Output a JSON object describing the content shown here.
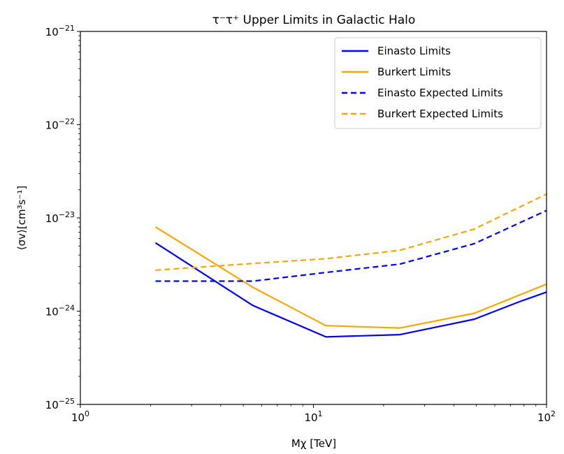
{
  "chart_data": {
    "type": "line",
    "title": "τ⁻τ⁺ Upper Limits in Galactic Halo",
    "xlabel": "Mχ [TeV]",
    "ylabel": "⟨σv⟩[cm³s⁻¹]",
    "xscale": "log",
    "yscale": "log",
    "xlim": [
      1,
      100
    ],
    "ylim": [
      1e-25,
      1e-21
    ],
    "grid": false,
    "legend_position": "top-right",
    "x_tick_labels": [
      {
        "value": 1,
        "base": "10",
        "exp": "0"
      },
      {
        "value": 10,
        "base": "10",
        "exp": "1"
      },
      {
        "value": 100,
        "base": "10",
        "exp": "2"
      }
    ],
    "y_tick_labels": [
      {
        "value": 1e-25,
        "base": "10",
        "exp": "−25"
      },
      {
        "value": 1e-24,
        "base": "10",
        "exp": "−24"
      },
      {
        "value": 1e-23,
        "base": "10",
        "exp": "−23"
      },
      {
        "value": 1e-22,
        "base": "10",
        "exp": "−22"
      },
      {
        "value": 1e-21,
        "base": "10",
        "exp": "−21"
      }
    ],
    "series": [
      {
        "name": "Einasto Limits",
        "color": "#0000ff",
        "style": "solid",
        "x": [
          2.1,
          5.5,
          11.3,
          23.5,
          49,
          77,
          100
        ],
        "y": [
          5.4e-24,
          1.15e-24,
          5.3e-25,
          5.6e-25,
          8.2e-25,
          1.27e-24,
          1.6e-24
        ]
      },
      {
        "name": "Burkert Limits",
        "color": "#ffa500",
        "style": "solid",
        "x": [
          2.1,
          5.5,
          11.3,
          23.5,
          49,
          100
        ],
        "y": [
          8e-24,
          1.8e-24,
          7e-25,
          6.6e-25,
          9.5e-25,
          1.95e-24
        ]
      },
      {
        "name": "Einasto Expected Limits",
        "color": "#0000ff",
        "style": "dashed",
        "x": [
          2.1,
          5.5,
          11.3,
          23.5,
          49,
          100
        ],
        "y": [
          2.1e-24,
          2.1e-24,
          2.6e-24,
          3.2e-24,
          5.3e-24,
          1.2e-23
        ]
      },
      {
        "name": "Burkert Expected Limits",
        "color": "#ffa500",
        "style": "dashed",
        "x": [
          2.1,
          5.5,
          11.3,
          23.5,
          49,
          100
        ],
        "y": [
          2.75e-24,
          3.25e-24,
          3.65e-24,
          4.5e-24,
          7.6e-24,
          1.8e-23
        ]
      }
    ]
  }
}
